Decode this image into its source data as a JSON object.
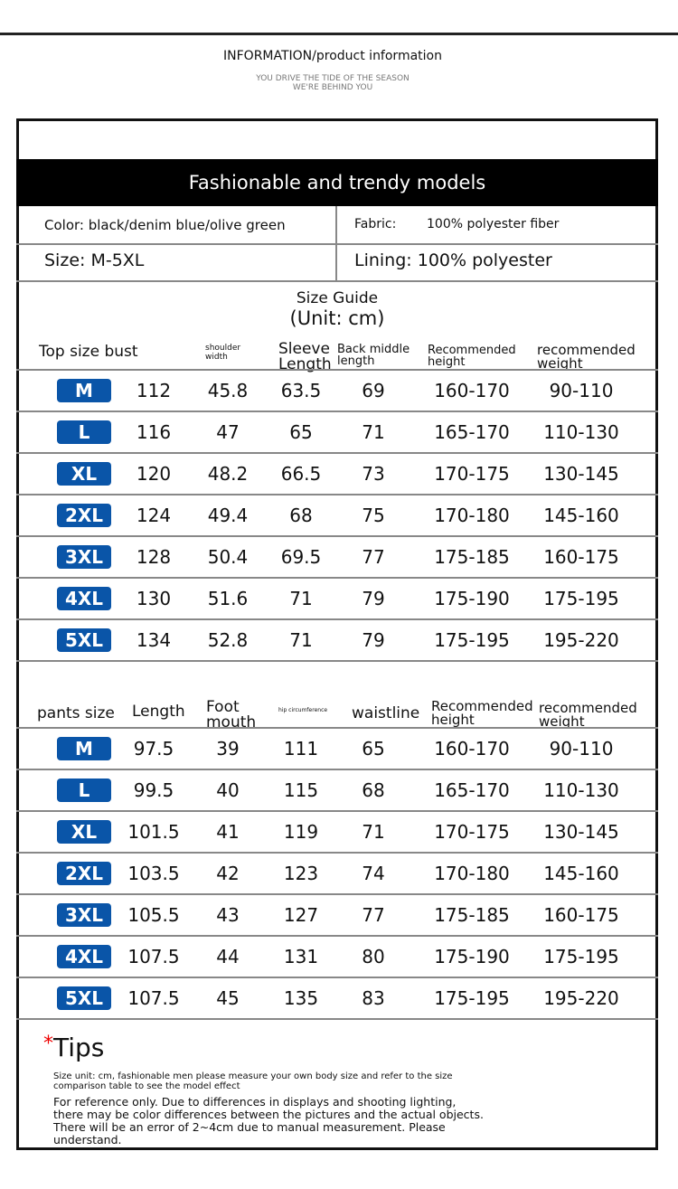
{
  "header": {
    "title": "INFORMATION/product information",
    "slogan_line1": "YOU DRIVE THE TIDE OF THE SEASON",
    "slogan_line2": "WE'RE BEHIND YOU"
  },
  "banner": "Fashionable and trendy models",
  "info": {
    "color": "Color: black/denim blue/olive green",
    "fabric_label": "Fabric:",
    "fabric_value": "100% polyester fiber",
    "size": "Size: M-5XL",
    "lining": "Lining: 100% polyester"
  },
  "size_guide": {
    "title": "Size Guide",
    "unit": "(Unit: cm)"
  },
  "badge_color": "#0a55a8",
  "top_table": {
    "headers": [
      "Top size bust",
      "shoulder width",
      "Sleeve Length",
      "Back middle length",
      "Recommended height",
      "recommended weight"
    ],
    "rows": [
      [
        "M",
        "112",
        "45.8",
        "63.5",
        "69",
        "160-170",
        "90-110"
      ],
      [
        "L",
        "116",
        "47",
        "65",
        "71",
        "165-170",
        "110-130"
      ],
      [
        "XL",
        "120",
        "48.2",
        "66.5",
        "73",
        "170-175",
        "130-145"
      ],
      [
        "2XL",
        "124",
        "49.4",
        "68",
        "75",
        "170-180",
        "145-160"
      ],
      [
        "3XL",
        "128",
        "50.4",
        "69.5",
        "77",
        "175-185",
        "160-175"
      ],
      [
        "4XL",
        "130",
        "51.6",
        "71",
        "79",
        "175-190",
        "175-195"
      ],
      [
        "5XL",
        "134",
        "52.8",
        "71",
        "79",
        "175-195",
        "195-220"
      ]
    ]
  },
  "pants_table": {
    "headers": [
      "pants size",
      "Length",
      "Foot mouth",
      "hip circumference",
      "waistline",
      "Recommended height",
      "recommended weight"
    ],
    "rows": [
      [
        "M",
        "97.5",
        "39",
        "111",
        "65",
        "160-170",
        "90-110"
      ],
      [
        "L",
        "99.5",
        "40",
        "115",
        "68",
        "165-170",
        "110-130"
      ],
      [
        "XL",
        "101.5",
        "41",
        "119",
        "71",
        "170-175",
        "130-145"
      ],
      [
        "2XL",
        "103.5",
        "42",
        "123",
        "74",
        "170-180",
        "145-160"
      ],
      [
        "3XL",
        "105.5",
        "43",
        "127",
        "77",
        "175-185",
        "160-175"
      ],
      [
        "4XL",
        "107.5",
        "44",
        "131",
        "80",
        "175-190",
        "175-195"
      ],
      [
        "5XL",
        "107.5",
        "45",
        "135",
        "83",
        "175-195",
        "195-220"
      ]
    ]
  },
  "tips": {
    "star": "*",
    "title": "Tips",
    "line1": "Size unit: cm, fashionable men please measure your own body size and refer to the size comparison table to see the model effect",
    "line2": "For reference only. Due to differences in displays and shooting lighting, there may be color differences between the pictures and the actual objects. There will be an error of 2~4cm due to manual measurement. Please understand."
  }
}
